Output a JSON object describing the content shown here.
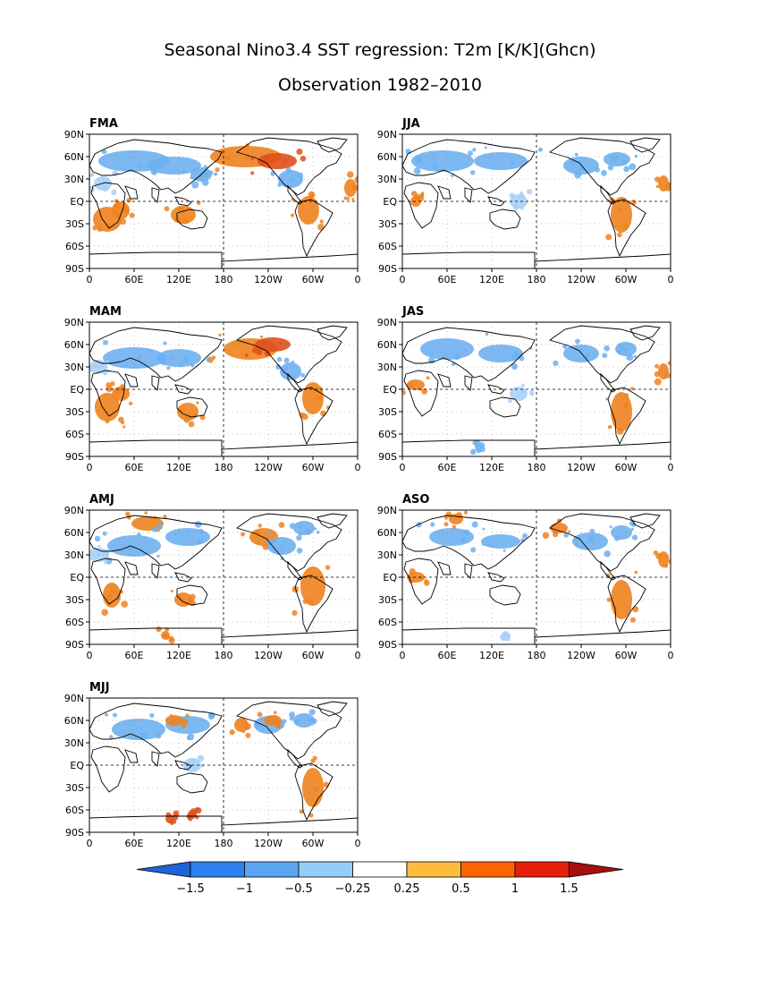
{
  "title": "Seasonal Nino3.4 SST regression: T2m [K/K](Ghcn)",
  "subtitle": "Observation 1982–2010",
  "lat_labels": [
    "90N",
    "60N",
    "30N",
    "EQ",
    "30S",
    "60S",
    "90S"
  ],
  "lon_labels": [
    "0",
    "60E",
    "120E",
    "180",
    "120W",
    "60W",
    "0"
  ],
  "panels": [
    {
      "label": "FMA"
    },
    {
      "label": "JJA"
    },
    {
      "label": "MAM"
    },
    {
      "label": "JAS"
    },
    {
      "label": "AMJ"
    },
    {
      "label": "ASO"
    },
    {
      "label": "MJJ"
    }
  ],
  "colorbar": {
    "colors": [
      "#1e64d8",
      "#2c82ec",
      "#5aa5f2",
      "#96ccf8",
      "#ffffff",
      "#fdbc3c",
      "#fd6400",
      "#e61e0a",
      "#a50f0f"
    ],
    "labels": [
      "−1.5",
      "−1",
      "−0.5",
      "−0.25",
      "0.25",
      "0.5",
      "1",
      "1.5"
    ]
  },
  "colors": {
    "warm": "#f0821e",
    "warm_strong": "#e0501a",
    "cool": "#6eb0f0",
    "cool_light": "#a8d0f8"
  }
}
